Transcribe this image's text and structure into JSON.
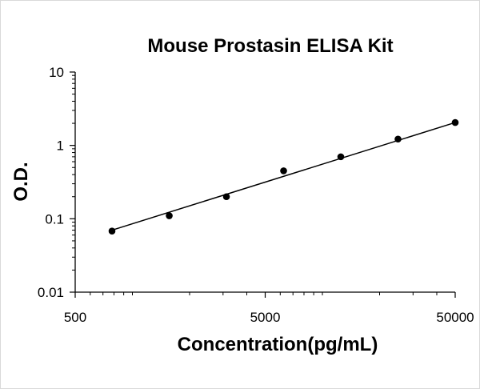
{
  "chart_data": {
    "type": "scatter",
    "title": "Mouse Prostasin ELISA Kit",
    "xlabel": "Concentration(pg/mL)",
    "ylabel": "O.D.",
    "x_scale": "log",
    "y_scale": "log",
    "xlim": [
      500,
      50000
    ],
    "ylim": [
      0.01,
      10
    ],
    "x_tick_labels": [
      "500",
      "5000",
      "50000"
    ],
    "y_tick_labels": [
      "10",
      "1",
      "0.1",
      "0.01"
    ],
    "grid": false,
    "legend": "none",
    "colors": {
      "points": "#000000",
      "line": "#000000",
      "axis": "#000000"
    },
    "series": [
      {
        "x": [
          781,
          1563,
          3125,
          6250,
          12500,
          25000,
          50000
        ],
        "y": [
          0.068,
          0.11,
          0.2,
          0.45,
          0.7,
          1.22,
          2.05
        ]
      }
    ],
    "trendline": {
      "type": "power",
      "x": [
        781,
        50000
      ],
      "y": [
        0.07,
        2.05
      ]
    }
  }
}
